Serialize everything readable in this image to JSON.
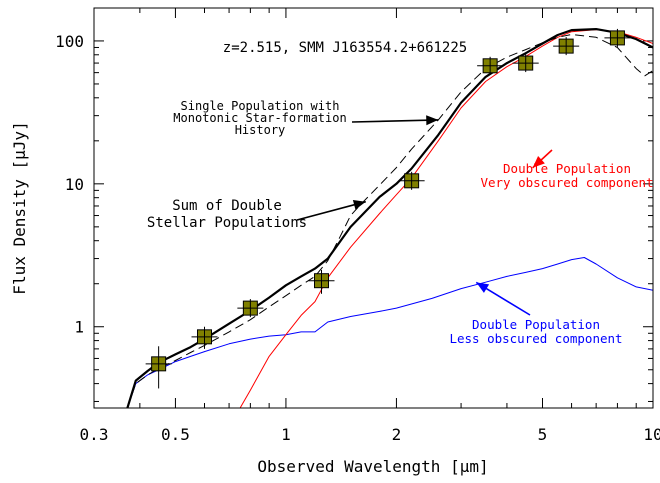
{
  "chart_data": {
    "type": "line",
    "title": "z=2.515, SMM J163554.2+661225",
    "xlabel": "Observed Wavelength [μm]",
    "ylabel": "Flux Density [μJy]",
    "xscale": "log",
    "yscale": "log",
    "xlim": [
      0.3,
      10
    ],
    "ylim": [
      0.27,
      170
    ],
    "xticks": [
      {
        "value": 0.3,
        "label": "0.3"
      },
      {
        "value": 0.5,
        "label": "0.5"
      },
      {
        "value": 1,
        "label": "1"
      },
      {
        "value": 2,
        "label": "2"
      },
      {
        "value": 5,
        "label": "5"
      },
      {
        "value": 10,
        "label": "10"
      }
    ],
    "yticks": [
      {
        "value": 1,
        "label": "1"
      },
      {
        "value": 10,
        "label": "10"
      },
      {
        "value": 100,
        "label": "100"
      }
    ],
    "series": [
      {
        "name": "Sum of Double Stellar Populations",
        "style": "solid-thick",
        "color": "#000000",
        "x": [
          0.37,
          0.39,
          0.42,
          0.45,
          0.5,
          0.55,
          0.6,
          0.7,
          0.8,
          0.9,
          1.0,
          1.1,
          1.2,
          1.3,
          1.5,
          1.8,
          2.0,
          2.2,
          2.6,
          3.0,
          3.5,
          4.0,
          4.5,
          5.0,
          5.5,
          6.0,
          7.0,
          8.0,
          9.0,
          10.0
        ],
        "y": [
          0.27,
          0.42,
          0.49,
          0.56,
          0.64,
          0.72,
          0.82,
          1.05,
          1.3,
          1.6,
          1.95,
          2.25,
          2.55,
          3.0,
          5.0,
          8.1,
          10.0,
          12.8,
          22.0,
          37.0,
          56.0,
          70.0,
          82.0,
          96.0,
          110.0,
          119.0,
          121.0,
          114.0,
          103.0,
          90.0
        ]
      },
      {
        "name": "Single Population with Monotonic Star-formation History",
        "style": "dashed",
        "color": "#000000",
        "x": [
          0.37,
          0.39,
          0.42,
          0.45,
          0.5,
          0.55,
          0.6,
          0.7,
          0.8,
          0.9,
          1.0,
          1.1,
          1.2,
          1.3,
          1.4,
          1.5,
          1.6,
          1.8,
          2.0,
          2.2,
          2.6,
          3.0,
          3.5,
          4.0,
          4.5,
          5.0,
          5.5,
          6.0,
          7.0,
          8.0,
          9.0,
          9.5,
          10.0
        ],
        "y": [
          0.27,
          0.4,
          0.46,
          0.51,
          0.58,
          0.66,
          0.74,
          0.92,
          1.12,
          1.38,
          1.65,
          1.95,
          2.25,
          2.9,
          4.2,
          6.0,
          7.2,
          9.8,
          13.0,
          17.5,
          28.0,
          44.0,
          64.0,
          77.0,
          87.0,
          97.0,
          106.0,
          111.0,
          106.0,
          90.0,
          64.0,
          57.0,
          62.0
        ]
      },
      {
        "name": "Double Population Very obscured component",
        "style": "solid",
        "color": "#ff0000",
        "x": [
          0.75,
          0.8,
          0.9,
          1.0,
          1.1,
          1.2,
          1.3,
          1.5,
          1.8,
          2.0,
          2.2,
          2.6,
          3.0,
          3.5,
          4.0,
          4.5,
          5.0,
          5.5,
          6.0,
          7.0,
          8.0,
          9.0,
          10.0
        ],
        "y": [
          0.27,
          0.36,
          0.62,
          0.88,
          1.2,
          1.5,
          2.2,
          3.6,
          6.2,
          8.4,
          11.0,
          20.0,
          34.0,
          52.0,
          66.0,
          78.0,
          92.0,
          106.0,
          116.0,
          120.0,
          116.0,
          106.0,
          96.0
        ]
      },
      {
        "name": "Double Population Less obscured component",
        "style": "solid",
        "color": "#0000ff",
        "x": [
          0.37,
          0.39,
          0.42,
          0.45,
          0.5,
          0.55,
          0.6,
          0.7,
          0.8,
          0.9,
          1.0,
          1.1,
          1.2,
          1.3,
          1.5,
          1.8,
          2.0,
          2.5,
          3.0,
          3.5,
          4.0,
          4.5,
          5.0,
          5.5,
          6.0,
          6.5,
          7.0,
          8.0,
          9.0,
          10.0
        ],
        "y": [
          0.27,
          0.4,
          0.46,
          0.5,
          0.57,
          0.62,
          0.67,
          0.76,
          0.82,
          0.86,
          0.88,
          0.92,
          0.92,
          1.08,
          1.18,
          1.28,
          1.35,
          1.58,
          1.85,
          2.05,
          2.25,
          2.4,
          2.55,
          2.75,
          2.95,
          3.05,
          2.75,
          2.2,
          1.9,
          1.8
        ]
      }
    ],
    "observations": {
      "name": "photometry",
      "color": "#808000",
      "x": [
        0.45,
        0.6,
        0.8,
        1.25,
        2.2,
        3.6,
        4.5,
        5.8,
        8.0
      ],
      "y": [
        0.55,
        0.85,
        1.35,
        2.1,
        10.5,
        67.0,
        70.0,
        92.0,
        105.0
      ],
      "yerr": [
        0.18,
        0.15,
        0.15,
        0.4,
        1.0,
        5.0,
        5.0,
        5.0,
        10.0
      ]
    },
    "annotations": [
      {
        "lines": [
          "Single Population with",
          "Monotonic Star-formation",
          "History"
        ],
        "color": "#000000",
        "arrow_to": {
          "x": 2.6,
          "y": 28
        }
      },
      {
        "lines": [
          "Sum of Double",
          "Stellar Populations"
        ],
        "color": "#000000",
        "arrow_to": {
          "x": 1.65,
          "y": 7.5
        }
      },
      {
        "lines": [
          "Double Population",
          "Very obscured component"
        ],
        "color": "#ff0000",
        "arrow_from": {
          "x": 4.7,
          "y": 40
        }
      },
      {
        "lines": [
          "Double Population",
          "Less obscured component"
        ],
        "color": "#0000ff",
        "arrow_from": {
          "x": 3.3,
          "y": 2.4
        }
      }
    ]
  }
}
